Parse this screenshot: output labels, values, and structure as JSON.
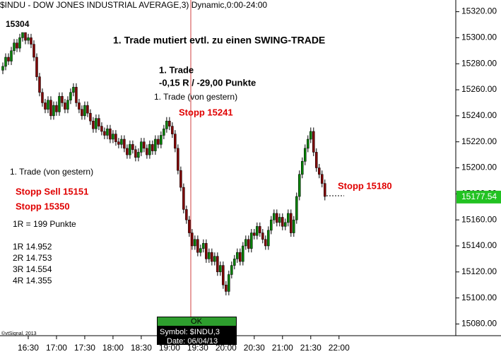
{
  "chart_data": {
    "type": "candlestick",
    "title": "$INDU - DOW JONES INDUSTRIAL AVERAGE,3) Dynamic,0:00-24:00",
    "x": [
      963,
      966,
      969,
      972,
      975,
      978,
      981,
      984,
      987,
      990,
      993,
      996,
      999,
      1002,
      1005,
      1008,
      1011,
      1014,
      1017,
      1020,
      1023,
      1026,
      1029,
      1032,
      1035,
      1038,
      1041,
      1044,
      1047,
      1050,
      1053,
      1056,
      1059,
      1062,
      1065,
      1068,
      1071,
      1074,
      1077,
      1080,
      1083,
      1086,
      1089,
      1092,
      1095,
      1098,
      1101,
      1104,
      1107,
      1110,
      1113,
      1116,
      1119,
      1122,
      1125,
      1128,
      1131,
      1134,
      1137,
      1140,
      1143,
      1146,
      1149,
      1152,
      1155,
      1158,
      1161,
      1164,
      1167,
      1170,
      1173,
      1176,
      1179,
      1182,
      1185,
      1188,
      1191,
      1194,
      1197,
      1200,
      1203,
      1206,
      1209,
      1212,
      1215,
      1218,
      1221,
      1224,
      1227,
      1230,
      1233,
      1236,
      1239,
      1242,
      1245,
      1248,
      1251,
      1254,
      1257,
      1260,
      1263,
      1266,
      1269,
      1272,
      1275,
      1278,
      1281,
      1284,
      1287,
      1290,
      1293,
      1296,
      1299,
      1302,
      1305
    ],
    "open": [
      15275,
      15278,
      15285,
      15282,
      15290,
      15296,
      15292,
      15300,
      15304,
      15298,
      15300,
      15295,
      15285,
      15270,
      15258,
      15250,
      15245,
      15252,
      15240,
      15248,
      15243,
      15255,
      15250,
      15245,
      15252,
      15258,
      15262,
      15250,
      15245,
      15240,
      15248,
      15242,
      15236,
      15230,
      15238,
      15232,
      15228,
      15225,
      15230,
      15222,
      15226,
      15220,
      15218,
      15222,
      15215,
      15210,
      15218,
      15214,
      15208,
      15212,
      15220,
      15215,
      15210,
      15218,
      15213,
      15222,
      15218,
      15225,
      15230,
      15236,
      15232,
      15226,
      15215,
      15198,
      15185,
      15168,
      15160,
      15150,
      15140,
      15145,
      15135,
      15138,
      15142,
      15130,
      15135,
      15128,
      15132,
      15120,
      15125,
      15110,
      15105,
      15118,
      15125,
      15130,
      15135,
      15128,
      15140,
      15145,
      15138,
      15150,
      15148,
      15155,
      15150,
      15145,
      15140,
      15152,
      15160,
      15165,
      15158,
      15162,
      15155,
      15158,
      15165,
      15150,
      15160,
      15178,
      15195,
      15205,
      15215,
      15222,
      15228,
      15212,
      15200,
      15195,
      15188
    ],
    "high": [
      15281,
      15288,
      15288,
      15293,
      15299,
      15299,
      15303,
      15304,
      15304,
      15303,
      15303,
      15298,
      15288,
      15273,
      15261,
      15253,
      15255,
      15255,
      15251,
      15251,
      15258,
      15258,
      15253,
      15255,
      15261,
      15265,
      15265,
      15253,
      15248,
      15251,
      15251,
      15245,
      15239,
      15241,
      15241,
      15235,
      15231,
      15233,
      15233,
      15229,
      15229,
      15223,
      15225,
      15225,
      15218,
      15221,
      15221,
      15217,
      15215,
      15223,
      15223,
      15218,
      15221,
      15221,
      15225,
      15225,
      15228,
      15233,
      15239,
      15239,
      15235,
      15229,
      15218,
      15201,
      15188,
      15171,
      15163,
      15153,
      15148,
      15148,
      15141,
      15145,
      15145,
      15138,
      15138,
      15135,
      15135,
      15128,
      15128,
      15113,
      15121,
      15128,
      15133,
      15138,
      15138,
      15143,
      15148,
      15148,
      15153,
      15153,
      15158,
      15158,
      15153,
      15148,
      15155,
      15163,
      15168,
      15168,
      15165,
      15165,
      15161,
      15168,
      15168,
      15163,
      15181,
      15198,
      15208,
      15218,
      15225,
      15231,
      15231,
      15215,
      15203,
      15198,
      15191
    ],
    "low": [
      15272,
      15275,
      15279,
      15279,
      15287,
      15289,
      15289,
      15297,
      15295,
      15295,
      15292,
      15282,
      15267,
      15255,
      15247,
      15242,
      15242,
      15237,
      15237,
      15240,
      15240,
      15247,
      15242,
      15242,
      15249,
      15255,
      15247,
      15242,
      15237,
      15237,
      15239,
      15233,
      15227,
      15227,
      15229,
      15225,
      15222,
      15222,
      15219,
      15219,
      15217,
      15215,
      15215,
      15212,
      15207,
      15207,
      15211,
      15205,
      15205,
      15209,
      15212,
      15207,
      15207,
      15210,
      15210,
      15215,
      15215,
      15222,
      15227,
      15229,
      15223,
      15212,
      15195,
      15182,
      15165,
      15157,
      15147,
      15137,
      15137,
      15132,
      15132,
      15135,
      15127,
      15127,
      15125,
      15125,
      15117,
      15117,
      15107,
      15102,
      15102,
      15115,
      15122,
      15127,
      15125,
      15125,
      15137,
      15135,
      15135,
      15145,
      15145,
      15147,
      15142,
      15137,
      15137,
      15149,
      15157,
      15155,
      15155,
      15152,
      15152,
      15155,
      15147,
      15147,
      15157,
      15175,
      15192,
      15202,
      15212,
      15219,
      15209,
      15197,
      15192,
      15185,
      15175
    ],
    "close": [
      15278,
      15285,
      15282,
      15290,
      15296,
      15292,
      15300,
      15304,
      15298,
      15300,
      15295,
      15285,
      15270,
      15258,
      15250,
      15245,
      15252,
      15240,
      15248,
      15243,
      15255,
      15250,
      15245,
      15252,
      15258,
      15262,
      15250,
      15245,
      15240,
      15248,
      15242,
      15236,
      15230,
      15238,
      15232,
      15228,
      15225,
      15230,
      15222,
      15226,
      15220,
      15218,
      15222,
      15215,
      15210,
      15218,
      15214,
      15208,
      15212,
      15220,
      15215,
      15210,
      15218,
      15213,
      15222,
      15218,
      15225,
      15230,
      15236,
      15232,
      15226,
      15215,
      15198,
      15185,
      15168,
      15160,
      15150,
      15140,
      15145,
      15135,
      15138,
      15142,
      15130,
      15135,
      15128,
      15132,
      15120,
      15125,
      15110,
      15105,
      15118,
      15125,
      15130,
      15135,
      15128,
      15140,
      15145,
      15138,
      15150,
      15148,
      15155,
      15150,
      15145,
      15140,
      15152,
      15160,
      15165,
      15158,
      15162,
      15155,
      15158,
      15165,
      15150,
      15160,
      15178,
      15195,
      15205,
      15215,
      15222,
      15228,
      15212,
      15200,
      15195,
      15188,
      15178
    ],
    "up_color": "#008000",
    "down_color": "#800000",
    "xlim": [
      960,
      1444
    ],
    "xticks": [
      {
        "value": 990,
        "label": "16:30"
      },
      {
        "value": 1020,
        "label": "17:00"
      },
      {
        "value": 1050,
        "label": "17:30"
      },
      {
        "value": 1080,
        "label": "18:00"
      },
      {
        "value": 1110,
        "label": "18:30"
      },
      {
        "value": 1140,
        "label": "19:00"
      },
      {
        "value": 1170,
        "label": "19:30"
      },
      {
        "value": 1200,
        "label": "20:00"
      },
      {
        "value": 1230,
        "label": "20:30"
      },
      {
        "value": 1260,
        "label": "21:00"
      },
      {
        "value": 1290,
        "label": "21:30"
      },
      {
        "value": 1320,
        "label": "22:00"
      }
    ],
    "ylim": [
      15071,
      15329
    ],
    "yticks": [
      {
        "value": 15080,
        "label": "15080.00"
      },
      {
        "value": 15100,
        "label": "15100.00"
      },
      {
        "value": 15120,
        "label": "15120.00"
      },
      {
        "value": 15140,
        "label": "15140.00"
      },
      {
        "value": 15160,
        "label": "15160.00"
      },
      {
        "value": 15180,
        "label": "15180.00"
      },
      {
        "value": 15200,
        "label": "15200.00"
      },
      {
        "value": 15220,
        "label": "15220.00"
      },
      {
        "value": 15240,
        "label": "15240.00"
      },
      {
        "value": 15260,
        "label": "15260.00"
      },
      {
        "value": 15280,
        "label": "15280.00"
      },
      {
        "value": 15300,
        "label": "15300.00"
      },
      {
        "value": 15320,
        "label": "15320.00"
      }
    ],
    "last_price": 15177.54,
    "annotations": [
      "15304",
      "1. Trade mutiert evtl. zu einen SWING-TRADE",
      "1. Trade",
      "-0,15 R / -29,00 Punkte",
      "1. Trade (von gestern)",
      "Stopp 15241",
      "1. Trade (von gestern)",
      "Stopp Sell 15151",
      "Stopp 15350",
      "1R = 199 Punkte",
      "1R 14.952",
      "2R 14.753",
      "3R 14.554",
      "4R 14.355",
      "Stopp 15180"
    ]
  },
  "popup": {
    "button": "OK",
    "symbol": "Symbol: $INDU,3",
    "date": "Date: 06/04/13"
  },
  "copyright": "©vtSignal, 2013"
}
